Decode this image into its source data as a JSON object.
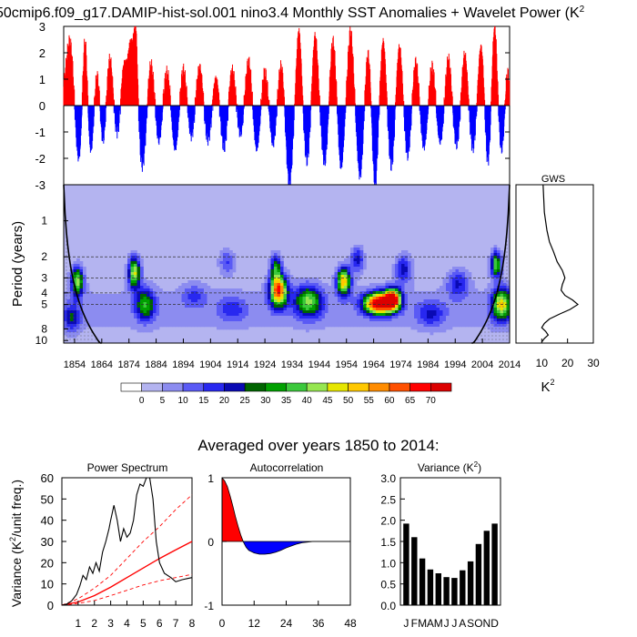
{
  "title": "50cmip6.f09_g17.DAMIP-hist-sol.001 nino3.4 Monthly SST Anomalies + Wavelet Power (K",
  "title_superscript": "2",
  "sst_panel": {
    "ylim": [
      -3,
      3
    ],
    "yticks": [
      "3",
      "2",
      "1",
      "0",
      "-1",
      "-2",
      "-3"
    ],
    "year_range": [
      1850,
      2014
    ],
    "positive_color": "#ff0000",
    "negative_color": "#0000ff",
    "events": [
      {
        "y": 1852.5,
        "a": 2.6,
        "w": 2.2
      },
      {
        "y": 1855.3,
        "a": -2.4,
        "w": 2.0
      },
      {
        "y": 1857.8,
        "a": 3.0,
        "w": 1.2
      },
      {
        "y": 1860.0,
        "a": -1.8,
        "w": 1.5
      },
      {
        "y": 1862.2,
        "a": 1.3,
        "w": 1.4
      },
      {
        "y": 1864.5,
        "a": -1.4,
        "w": 1.4
      },
      {
        "y": 1867.0,
        "a": 1.8,
        "w": 1.5
      },
      {
        "y": 1869.6,
        "a": -1.0,
        "w": 1.6
      },
      {
        "y": 1872.2,
        "a": 1.5,
        "w": 1.4
      },
      {
        "y": 1874.6,
        "a": 2.2,
        "w": 1.3
      },
      {
        "y": 1876.5,
        "a": 3.0,
        "w": 1.0
      },
      {
        "y": 1879.0,
        "a": -2.2,
        "w": 1.8
      },
      {
        "y": 1882.0,
        "a": 1.6,
        "w": 1.6
      },
      {
        "y": 1885.0,
        "a": -1.3,
        "w": 1.5
      },
      {
        "y": 1888.0,
        "a": 1.2,
        "w": 1.6
      },
      {
        "y": 1891.0,
        "a": -1.6,
        "w": 1.6
      },
      {
        "y": 1894.0,
        "a": 1.3,
        "w": 1.5
      },
      {
        "y": 1897.0,
        "a": -1.1,
        "w": 1.5
      },
      {
        "y": 1900.0,
        "a": 1.4,
        "w": 1.6
      },
      {
        "y": 1903.0,
        "a": -1.2,
        "w": 1.6
      },
      {
        "y": 1906.0,
        "a": 1.0,
        "w": 1.4
      },
      {
        "y": 1909.0,
        "a": -1.5,
        "w": 1.5
      },
      {
        "y": 1912.0,
        "a": 1.3,
        "w": 1.5
      },
      {
        "y": 1915.0,
        "a": -1.0,
        "w": 1.5
      },
      {
        "y": 1918.0,
        "a": 1.6,
        "w": 1.5
      },
      {
        "y": 1921.0,
        "a": -1.6,
        "w": 1.5
      },
      {
        "y": 1924.0,
        "a": 1.2,
        "w": 1.5
      },
      {
        "y": 1927.0,
        "a": -1.4,
        "w": 1.5
      },
      {
        "y": 1930.0,
        "a": 1.5,
        "w": 1.5
      },
      {
        "y": 1933.0,
        "a": -2.9,
        "w": 1.6
      },
      {
        "y": 1936.5,
        "a": 2.8,
        "w": 1.3
      },
      {
        "y": 1939.5,
        "a": -2.0,
        "w": 1.5
      },
      {
        "y": 1942.5,
        "a": 2.6,
        "w": 1.4
      },
      {
        "y": 1946.0,
        "a": -2.1,
        "w": 1.6
      },
      {
        "y": 1949.0,
        "a": 2.4,
        "w": 1.5
      },
      {
        "y": 1952.0,
        "a": -2.3,
        "w": 1.4
      },
      {
        "y": 1955.5,
        "a": 2.7,
        "w": 1.4
      },
      {
        "y": 1959.0,
        "a": -2.6,
        "w": 1.5
      },
      {
        "y": 1962.0,
        "a": 2.0,
        "w": 1.4
      },
      {
        "y": 1964.5,
        "a": -3.0,
        "w": 1.4
      },
      {
        "y": 1967.5,
        "a": 2.4,
        "w": 1.4
      },
      {
        "y": 1970.5,
        "a": -2.2,
        "w": 1.5
      },
      {
        "y": 1973.5,
        "a": 2.2,
        "w": 1.4
      },
      {
        "y": 1976.5,
        "a": -1.8,
        "w": 1.5
      },
      {
        "y": 1979.5,
        "a": 1.6,
        "w": 1.4
      },
      {
        "y": 1982.5,
        "a": -1.5,
        "w": 1.5
      },
      {
        "y": 1985.5,
        "a": 1.4,
        "w": 1.4
      },
      {
        "y": 1988.5,
        "a": -1.3,
        "w": 1.5
      },
      {
        "y": 1991.5,
        "a": 1.7,
        "w": 1.4
      },
      {
        "y": 1994.5,
        "a": -1.4,
        "w": 1.5
      },
      {
        "y": 1997.5,
        "a": 1.9,
        "w": 1.4
      },
      {
        "y": 2000.5,
        "a": -1.5,
        "w": 1.5
      },
      {
        "y": 2003.5,
        "a": 2.2,
        "w": 1.4
      },
      {
        "y": 2006.0,
        "a": -2.1,
        "w": 1.3
      },
      {
        "y": 2008.5,
        "a": 3.0,
        "w": 1.2
      },
      {
        "y": 2011.0,
        "a": -1.6,
        "w": 1.3
      },
      {
        "y": 2013.2,
        "a": 1.2,
        "w": 1.0
      }
    ]
  },
  "wavelet_panel": {
    "ylabel": "Period (years)",
    "period_ticks": [
      "1",
      "2",
      "3",
      "4",
      "5",
      "8",
      "10"
    ],
    "period_tick_values": [
      1,
      2,
      3,
      4,
      5,
      8,
      10
    ],
    "period_range": [
      0.5,
      10.5
    ],
    "xticks": [
      "1854",
      "1864",
      "1874",
      "1884",
      "1894",
      "1904",
      "1914",
      "1924",
      "1934",
      "1944",
      "1954",
      "1964",
      "1974",
      "1984",
      "1994",
      "2004",
      "2014"
    ],
    "xtick_values": [
      1854,
      1864,
      1874,
      1884,
      1894,
      1904,
      1914,
      1924,
      1934,
      1944,
      1954,
      1964,
      1974,
      1984,
      1994,
      2004,
      2014
    ],
    "dashed_periods": [
      2,
      3,
      4,
      5
    ],
    "blobs": [
      {
        "y": 1855,
        "p": 3.2,
        "sy": 2.2,
        "sp": 0.28,
        "a": 42
      },
      {
        "y": 1853,
        "p": 6.5,
        "sy": 3.0,
        "sp": 0.25,
        "a": 20
      },
      {
        "y": 1876,
        "p": 2.7,
        "sy": 2.2,
        "sp": 0.3,
        "a": 45
      },
      {
        "y": 1880,
        "p": 5.0,
        "sy": 3.5,
        "sp": 0.3,
        "a": 30
      },
      {
        "y": 1898,
        "p": 4.2,
        "sy": 4.5,
        "sp": 0.22,
        "a": 12
      },
      {
        "y": 1910,
        "p": 2.2,
        "sy": 3.0,
        "sp": 0.25,
        "a": 15
      },
      {
        "y": 1912,
        "p": 5.5,
        "sy": 5.0,
        "sp": 0.25,
        "a": 12
      },
      {
        "y": 1929,
        "p": 3.8,
        "sy": 3.2,
        "sp": 0.3,
        "a": 62
      },
      {
        "y": 1928,
        "p": 2.4,
        "sy": 2.0,
        "sp": 0.25,
        "a": 28
      },
      {
        "y": 1940,
        "p": 4.7,
        "sy": 5.0,
        "sp": 0.3,
        "a": 36
      },
      {
        "y": 1953,
        "p": 3.2,
        "sy": 2.5,
        "sp": 0.26,
        "a": 52
      },
      {
        "y": 1958,
        "p": 2.1,
        "sy": 2.5,
        "sp": 0.25,
        "a": 22
      },
      {
        "y": 1966,
        "p": 4.9,
        "sy": 5.5,
        "sp": 0.2,
        "a": 72
      },
      {
        "y": 1971,
        "p": 4.5,
        "sy": 3.0,
        "sp": 0.2,
        "a": 60
      },
      {
        "y": 1975,
        "p": 2.5,
        "sy": 3.0,
        "sp": 0.28,
        "a": 22
      },
      {
        "y": 1985,
        "p": 6.0,
        "sy": 5.0,
        "sp": 0.25,
        "a": 15
      },
      {
        "y": 1995,
        "p": 3.3,
        "sy": 4.0,
        "sp": 0.28,
        "a": 18
      },
      {
        "y": 2009,
        "p": 2.3,
        "sy": 2.0,
        "sp": 0.25,
        "a": 40
      },
      {
        "y": 2011,
        "p": 5.0,
        "sy": 3.5,
        "sp": 0.3,
        "a": 45
      }
    ]
  },
  "colorbar": {
    "labels": [
      "0",
      "5",
      "10",
      "15",
      "20",
      "25",
      "30",
      "35",
      "40",
      "45",
      "50",
      "55",
      "60",
      "65",
      "70"
    ],
    "colors": [
      "#ffffff",
      "#b4b4f0",
      "#8c8cf0",
      "#5a5af5",
      "#2828f0",
      "#0a0ab4",
      "#006400",
      "#00a000",
      "#3cc83c",
      "#96e650",
      "#e6e600",
      "#ffc800",
      "#ff8c00",
      "#ff5000",
      "#ff0000",
      "#dc0000"
    ]
  },
  "gws_panel": {
    "title": "GWS",
    "xticks": [
      "10",
      "20",
      "30"
    ],
    "xtick_values": [
      10,
      20,
      30
    ],
    "xlabel": "K",
    "xlabel_superscript": "2",
    "curve": [
      [
        10.5,
        0.5
      ],
      [
        11,
        0.85
      ],
      [
        12,
        1.2
      ],
      [
        13,
        1.5
      ],
      [
        14.5,
        1.8
      ],
      [
        16,
        2.2
      ],
      [
        18,
        2.6
      ],
      [
        19,
        3.0
      ],
      [
        18,
        3.4
      ],
      [
        17.5,
        3.8
      ],
      [
        19,
        4.2
      ],
      [
        22,
        4.6
      ],
      [
        24,
        5.0
      ],
      [
        21,
        5.5
      ],
      [
        17,
        6.0
      ],
      [
        13,
        6.6
      ],
      [
        11,
        7.2
      ],
      [
        10,
        7.8
      ],
      [
        11.5,
        8.4
      ],
      [
        12.5,
        9.0
      ],
      [
        11,
        9.6
      ],
      [
        10,
        10.3
      ]
    ]
  },
  "averaged_title": "Averaged over years 1850 to 2014:",
  "power_spectrum": {
    "title": "Power Spectrum",
    "ylabel": "Variance (K",
    "ylabel_superscript": "2",
    "ylabel_suffix": "/unit freq.)",
    "xlim": [
      0,
      8
    ],
    "ylim": [
      0,
      60
    ],
    "xticks": [
      "1",
      "2",
      "3",
      "4",
      "5",
      "6",
      "7",
      "8"
    ],
    "xtick_values": [
      1,
      2,
      3,
      4,
      5,
      6,
      7,
      8
    ],
    "yticks": [
      "0",
      "10",
      "20",
      "30",
      "40",
      "50",
      "60"
    ],
    "ytick_values": [
      0,
      10,
      20,
      30,
      40,
      50,
      60
    ],
    "spectrum": [
      [
        0,
        0
      ],
      [
        0.3,
        0.5
      ],
      [
        0.6,
        2
      ],
      [
        0.9,
        5
      ],
      [
        1.1,
        9
      ],
      [
        1.3,
        14
      ],
      [
        1.5,
        12
      ],
      [
        1.7,
        18
      ],
      [
        1.9,
        15
      ],
      [
        2.1,
        20
      ],
      [
        2.3,
        16
      ],
      [
        2.5,
        25
      ],
      [
        2.7,
        30
      ],
      [
        2.9,
        36
      ],
      [
        3.0,
        40
      ],
      [
        3.2,
        47
      ],
      [
        3.4,
        40
      ],
      [
        3.6,
        30
      ],
      [
        3.8,
        36
      ],
      [
        4.0,
        32
      ],
      [
        4.2,
        34
      ],
      [
        4.4,
        40
      ],
      [
        4.6,
        52
      ],
      [
        4.8,
        57
      ],
      [
        5.0,
        56
      ],
      [
        5.2,
        60
      ],
      [
        5.4,
        62
      ],
      [
        5.6,
        50
      ],
      [
        5.8,
        30
      ],
      [
        6.0,
        20
      ],
      [
        6.3,
        15
      ],
      [
        6.7,
        13
      ],
      [
        7.0,
        11
      ],
      [
        7.4,
        12
      ],
      [
        7.7,
        12.5
      ],
      [
        8.0,
        13
      ]
    ],
    "red_noise": [
      [
        0,
        0
      ],
      [
        1,
        1.5
      ],
      [
        2,
        4.5
      ],
      [
        3,
        8.5
      ],
      [
        4,
        13
      ],
      [
        5,
        17.5
      ],
      [
        6,
        22
      ],
      [
        7,
        26
      ],
      [
        8,
        30
      ]
    ],
    "upper_bound": [
      [
        0,
        0
      ],
      [
        1,
        3
      ],
      [
        2,
        8
      ],
      [
        3,
        14
      ],
      [
        4,
        22
      ],
      [
        5,
        30
      ],
      [
        6,
        37
      ],
      [
        7,
        45
      ],
      [
        8,
        52
      ]
    ],
    "lower_bound": [
      [
        0,
        0
      ],
      [
        1,
        0.8
      ],
      [
        2,
        2.2
      ],
      [
        3,
        4.5
      ],
      [
        4,
        7
      ],
      [
        5,
        9.5
      ],
      [
        6,
        11.5
      ],
      [
        7,
        13
      ],
      [
        8,
        14.5
      ]
    ]
  },
  "autocorrelation": {
    "title": "Autocorrelation",
    "xlim": [
      0,
      48
    ],
    "ylim": [
      -1,
      1
    ],
    "xticks": [
      "0",
      "12",
      "24",
      "36",
      "48"
    ],
    "xtick_values": [
      0,
      12,
      24,
      36,
      48
    ],
    "yticks": [
      "1",
      "0",
      "-1"
    ],
    "ytick_values": [
      1,
      0,
      -1
    ],
    "positive_color": "#ff0000",
    "negative_color": "#0000ff",
    "curve": [
      [
        0,
        1.0
      ],
      [
        1,
        0.95
      ],
      [
        2,
        0.86
      ],
      [
        3,
        0.72
      ],
      [
        4,
        0.56
      ],
      [
        5,
        0.39
      ],
      [
        6,
        0.24
      ],
      [
        7,
        0.1
      ],
      [
        8,
        -0.01
      ],
      [
        9,
        -0.09
      ],
      [
        10,
        -0.14
      ],
      [
        12,
        -0.18
      ],
      [
        14,
        -0.2
      ],
      [
        16,
        -0.2
      ],
      [
        18,
        -0.19
      ],
      [
        20,
        -0.17
      ],
      [
        22,
        -0.14
      ],
      [
        24,
        -0.1
      ],
      [
        26,
        -0.07
      ],
      [
        28,
        -0.04
      ],
      [
        30,
        -0.02
      ],
      [
        32,
        -0.01
      ],
      [
        34,
        0.0
      ],
      [
        48,
        0.0
      ]
    ]
  },
  "variance": {
    "title": "Variance (K",
    "title_superscript": "2",
    "title_suffix": ")",
    "ylim": [
      0,
      3
    ],
    "yticks": [
      "0.0",
      "0.5",
      "1.0",
      "1.5",
      "2.0",
      "2.5",
      "3.0"
    ],
    "ytick_values": [
      0,
      0.5,
      1.0,
      1.5,
      2.0,
      2.5,
      3.0
    ],
    "categories": [
      "J",
      "F",
      "M",
      "A",
      "M",
      "J",
      "J",
      "A",
      "S",
      "O",
      "N",
      "D"
    ],
    "values": [
      1.92,
      1.6,
      1.1,
      0.84,
      0.75,
      0.66,
      0.64,
      0.82,
      1.03,
      1.44,
      1.75,
      1.92
    ],
    "bar_color": "#000000"
  },
  "chart_data": [
    {
      "type": "bar",
      "title": "50cmip6.f09_g17.DAMIP-hist-sol.001 nino3.4 Monthly SST Anomalies + Wavelet Power (K",
      "x_range": [
        1850,
        2014
      ],
      "ylim": [
        -3,
        3
      ],
      "grid": false
    },
    {
      "type": "heatmap",
      "ylabel": "Period (years)",
      "y_axis": "log",
      "x_range": [
        1850,
        2014
      ],
      "y_range": [
        0.5,
        10.5
      ],
      "levels": [
        0,
        5,
        10,
        15,
        20,
        25,
        30,
        35,
        40,
        45,
        50,
        55,
        60,
        65,
        70
      ]
    },
    {
      "type": "line",
      "title": "GWS",
      "xlabel": "K",
      "xlim": [
        0,
        30
      ]
    },
    {
      "type": "line",
      "title": "Power Spectrum",
      "ylabel": "Variance (K",
      "xlim": [
        0,
        8
      ],
      "ylim": [
        0,
        60
      ]
    },
    {
      "type": "area",
      "title": "Autocorrelation",
      "xlim": [
        0,
        48
      ],
      "ylim": [
        -1,
        1
      ]
    },
    {
      "type": "bar",
      "title": "Variance (K",
      "categories": [
        "J",
        "F",
        "M",
        "A",
        "M",
        "J",
        "J",
        "A",
        "S",
        "O",
        "N",
        "D"
      ],
      "values": [
        1.92,
        1.6,
        1.1,
        0.84,
        0.75,
        0.66,
        0.64,
        0.82,
        1.03,
        1.44,
        1.75,
        1.92
      ],
      "ylim": [
        0,
        3
      ]
    }
  ]
}
